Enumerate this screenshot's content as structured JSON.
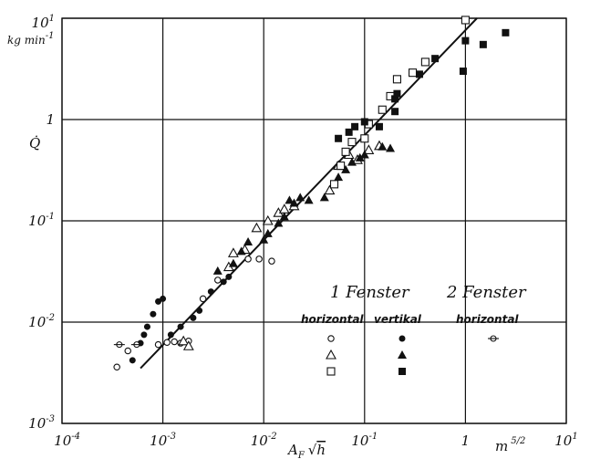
{
  "chart_data": {
    "type": "scatter",
    "title": "",
    "x_scale": "log",
    "y_scale": "log",
    "xlim": [
      0.0001,
      10
    ],
    "ylim": [
      0.001,
      10
    ],
    "grid": true,
    "x_ticks": [
      {
        "base": "10",
        "exp": "-4",
        "value": 0.0001
      },
      {
        "base": "10",
        "exp": "-3",
        "value": 0.001
      },
      {
        "base": "10",
        "exp": "-2",
        "value": 0.01
      },
      {
        "base": "10",
        "exp": "-1",
        "value": 0.1
      },
      {
        "base": "1",
        "exp": "",
        "value": 1
      },
      {
        "base": "10",
        "exp": "1",
        "value": 10
      }
    ],
    "y_ticks": [
      {
        "base": "10",
        "exp": "-3",
        "value": 0.001
      },
      {
        "base": "10",
        "exp": "-2",
        "value": 0.01
      },
      {
        "base": "10",
        "exp": "-1",
        "value": 0.1
      },
      {
        "base": "1",
        "exp": "",
        "value": 1
      },
      {
        "base": "10",
        "exp": "1",
        "value": 10
      }
    ],
    "xlabel": {
      "main": "A",
      "sub": "F",
      "root": "h"
    },
    "xunit": {
      "base": "m",
      "exp": "5/2"
    },
    "ylabel": "Q̇",
    "yunit": {
      "base": "kg min",
      "exp": "-1"
    },
    "legend": {
      "group1_title": "1 Fenster",
      "group2_title": "2 Fenster",
      "col_horizontal": "horizontal",
      "col_vertikal": "vertikal",
      "col_horizontal2": "horizontal"
    },
    "fit_line": [
      [
        0.0006,
        0.0035
      ],
      [
        1.3,
        10
      ]
    ],
    "series": [
      {
        "marker": "circle-open",
        "points": [
          [
            0.00035,
            0.0036
          ],
          [
            0.00045,
            0.0052
          ],
          [
            0.0009,
            0.006
          ],
          [
            0.0011,
            0.0063
          ],
          [
            0.0013,
            0.0064
          ],
          [
            0.0015,
            0.0062
          ],
          [
            0.0018,
            0.0065
          ],
          [
            0.0025,
            0.017
          ],
          [
            0.0035,
            0.026
          ],
          [
            0.005,
            0.035
          ],
          [
            0.007,
            0.042
          ],
          [
            0.009,
            0.042
          ],
          [
            0.012,
            0.04
          ]
        ]
      },
      {
        "marker": "circle-filled",
        "points": [
          [
            0.0005,
            0.0042
          ],
          [
            0.0006,
            0.0062
          ],
          [
            0.00065,
            0.0075
          ],
          [
            0.0007,
            0.009
          ],
          [
            0.0008,
            0.012
          ],
          [
            0.0009,
            0.016
          ],
          [
            0.001,
            0.017
          ],
          [
            0.0012,
            0.0075
          ],
          [
            0.0015,
            0.009
          ],
          [
            0.002,
            0.011
          ],
          [
            0.0023,
            0.013
          ],
          [
            0.003,
            0.02
          ],
          [
            0.004,
            0.025
          ],
          [
            0.0045,
            0.028
          ]
        ]
      },
      {
        "marker": "triangle-open",
        "points": [
          [
            0.0016,
            0.0065
          ],
          [
            0.0018,
            0.0058
          ],
          [
            0.0045,
            0.035
          ],
          [
            0.005,
            0.048
          ],
          [
            0.0065,
            0.052
          ],
          [
            0.0085,
            0.085
          ],
          [
            0.011,
            0.1
          ],
          [
            0.014,
            0.12
          ],
          [
            0.016,
            0.13
          ],
          [
            0.02,
            0.14
          ],
          [
            0.045,
            0.2
          ],
          [
            0.055,
            0.35
          ],
          [
            0.07,
            0.45
          ],
          [
            0.085,
            0.4
          ],
          [
            0.11,
            0.5
          ],
          [
            0.14,
            0.55
          ]
        ]
      },
      {
        "marker": "triangle-filled",
        "points": [
          [
            0.0035,
            0.032
          ],
          [
            0.005,
            0.038
          ],
          [
            0.006,
            0.05
          ],
          [
            0.007,
            0.062
          ],
          [
            0.01,
            0.065
          ],
          [
            0.011,
            0.075
          ],
          [
            0.014,
            0.095
          ],
          [
            0.016,
            0.11
          ],
          [
            0.018,
            0.16
          ],
          [
            0.02,
            0.15
          ],
          [
            0.023,
            0.17
          ],
          [
            0.028,
            0.16
          ],
          [
            0.04,
            0.17
          ],
          [
            0.055,
            0.27
          ],
          [
            0.065,
            0.32
          ],
          [
            0.075,
            0.38
          ],
          [
            0.09,
            0.42
          ],
          [
            0.1,
            0.45
          ],
          [
            0.15,
            0.54
          ],
          [
            0.18,
            0.52
          ]
        ]
      },
      {
        "marker": "square-open",
        "points": [
          [
            0.05,
            0.23
          ],
          [
            0.058,
            0.35
          ],
          [
            0.065,
            0.48
          ],
          [
            0.075,
            0.6
          ],
          [
            0.1,
            0.65
          ],
          [
            0.11,
            0.9
          ],
          [
            0.15,
            1.25
          ],
          [
            0.18,
            1.7
          ],
          [
            0.21,
            2.5
          ],
          [
            0.3,
            2.9
          ],
          [
            0.4,
            3.7
          ],
          [
            1.0,
            9.6
          ]
        ]
      },
      {
        "marker": "square-filled",
        "points": [
          [
            0.055,
            0.65
          ],
          [
            0.07,
            0.75
          ],
          [
            0.08,
            0.85
          ],
          [
            0.1,
            0.95
          ],
          [
            0.14,
            0.85
          ],
          [
            0.2,
            1.2
          ],
          [
            0.2,
            1.6
          ],
          [
            0.21,
            1.8
          ],
          [
            0.35,
            2.8
          ],
          [
            0.5,
            4
          ],
          [
            0.95,
            3
          ],
          [
            1.0,
            6
          ],
          [
            1.5,
            5.5
          ],
          [
            2.5,
            7.2
          ]
        ]
      },
      {
        "marker": "circle-bar",
        "points": [
          [
            0.00037,
            0.006
          ],
          [
            0.00055,
            0.006
          ]
        ]
      }
    ]
  }
}
